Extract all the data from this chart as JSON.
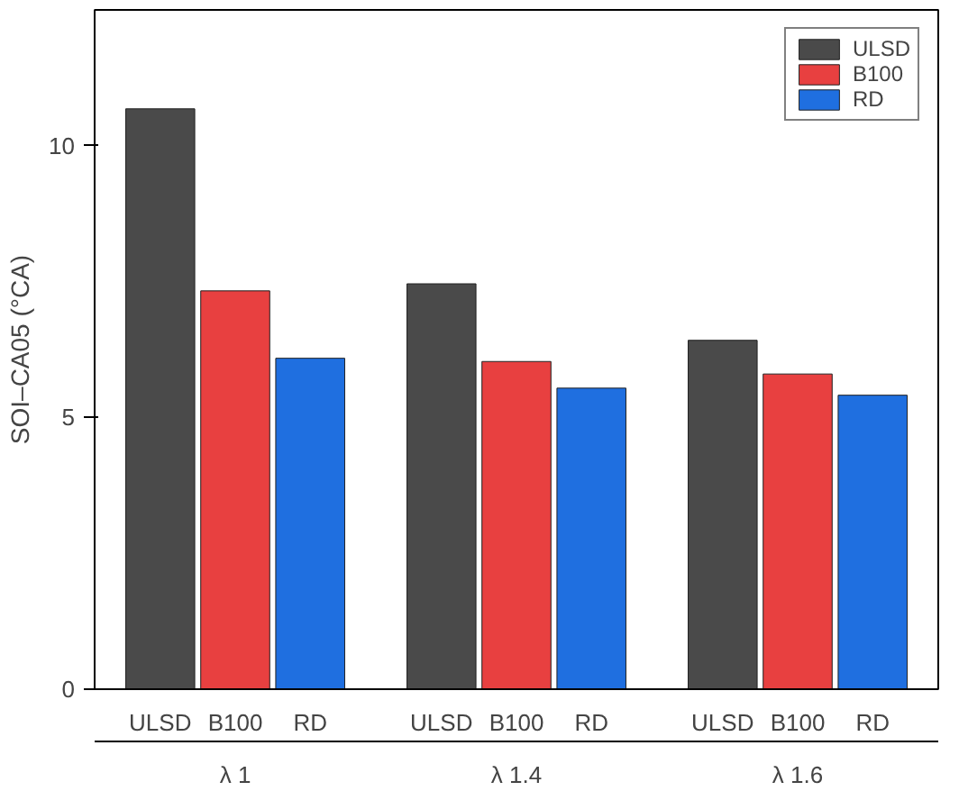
{
  "chart_data": {
    "type": "bar",
    "ylabel": "SOI–CA05 (°CA)",
    "categories": [
      "λ 1",
      "λ 1.4",
      "λ 1.6"
    ],
    "series": [
      {
        "name": "ULSD",
        "color": "#4a4a4a",
        "values": [
          10.68,
          7.46,
          6.42
        ]
      },
      {
        "name": "B100",
        "color": "#e84040",
        "values": [
          7.33,
          6.03,
          5.8
        ]
      },
      {
        "name": "RD",
        "color": "#1f6fe0",
        "values": [
          6.09,
          5.54,
          5.41
        ]
      }
    ],
    "ylim": [
      0,
      12.5
    ],
    "yticks": [
      0,
      5,
      10
    ],
    "grid": false,
    "legend": "top right"
  }
}
